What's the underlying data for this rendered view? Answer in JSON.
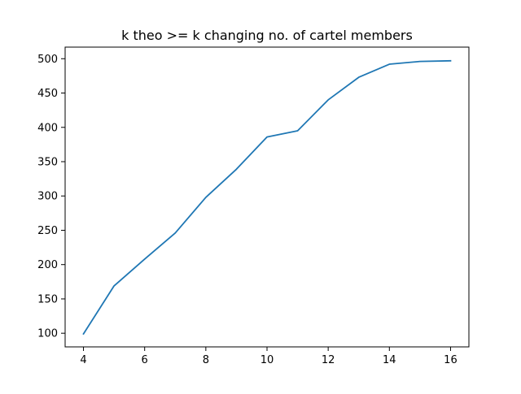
{
  "chart_data": {
    "type": "line",
    "title": "k theo >= k changing no. of cartel members",
    "xlabel": "",
    "ylabel": "",
    "xlim": [
      3.4,
      16.6
    ],
    "ylim": [
      80.1,
      516.9
    ],
    "grid": false,
    "x_ticks": [
      4,
      6,
      8,
      10,
      12,
      14,
      16
    ],
    "y_ticks": [
      100,
      150,
      200,
      250,
      300,
      350,
      400,
      450,
      500
    ],
    "series": [
      {
        "color": "#1f77b4",
        "x": [
          4,
          5,
          6,
          7,
          8,
          9,
          10,
          11,
          12,
          13,
          14,
          15,
          16
        ],
        "y": [
          99,
          169,
          208,
          246,
          298,
          339,
          386,
          395,
          440,
          473,
          492,
          496,
          497
        ]
      }
    ]
  }
}
